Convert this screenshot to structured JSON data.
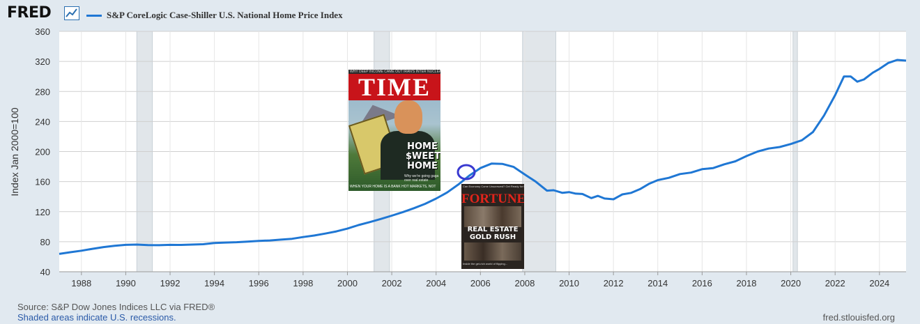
{
  "header": {
    "logo_text": "FRED",
    "logo_icon": "line-chart-icon",
    "legend_label": "S&P CoreLogic Case-Shiller U.S. National Home Price Index"
  },
  "chart_data": {
    "type": "line",
    "title": "S&P CoreLogic Case-Shiller U.S. National Home Price Index",
    "ylabel": "Index Jan 2000=100",
    "xlabel": "",
    "xlim": [
      1987.0,
      2025.2
    ],
    "ylim": [
      40,
      360
    ],
    "y_ticks": [
      40,
      80,
      120,
      160,
      200,
      240,
      280,
      320,
      360
    ],
    "x_ticks": [
      1988,
      1990,
      1992,
      1994,
      1996,
      1998,
      2000,
      2002,
      2004,
      2006,
      2008,
      2010,
      2012,
      2014,
      2016,
      2018,
      2020,
      2022,
      2024
    ],
    "grid": true,
    "legend_placement": "top-left",
    "line_color": "#1f77d4",
    "recession_color": "#e1e6ea",
    "recessions": [
      [
        1990.5,
        1991.2
      ],
      [
        2001.2,
        2001.9
      ],
      [
        2007.9,
        2009.4
      ],
      [
        2020.1,
        2020.3
      ]
    ],
    "series": [
      {
        "name": "S&P CoreLogic Case-Shiller U.S. National Home Price Index",
        "x": [
          1987.0,
          1987.5,
          1988.0,
          1988.5,
          1989.0,
          1989.5,
          1990.0,
          1990.5,
          1991.0,
          1991.5,
          1992.0,
          1992.5,
          1993.0,
          1993.5,
          1994.0,
          1994.5,
          1995.0,
          1995.5,
          1996.0,
          1996.5,
          1997.0,
          1997.5,
          1998.0,
          1998.5,
          1999.0,
          1999.5,
          2000.0,
          2000.5,
          2001.0,
          2001.5,
          2002.0,
          2002.5,
          2003.0,
          2003.5,
          2004.0,
          2004.5,
          2005.0,
          2005.5,
          2006.0,
          2006.5,
          2007.0,
          2007.5,
          2008.0,
          2008.5,
          2009.0,
          2009.3,
          2009.7,
          2010.0,
          2010.3,
          2010.6,
          2011.0,
          2011.3,
          2011.6,
          2012.0,
          2012.4,
          2012.8,
          2013.2,
          2013.6,
          2014.0,
          2014.5,
          2015.0,
          2015.5,
          2016.0,
          2016.5,
          2017.0,
          2017.5,
          2018.0,
          2018.5,
          2019.0,
          2019.5,
          2020.0,
          2020.5,
          2021.0,
          2021.5,
          2022.0,
          2022.4,
          2022.7,
          2023.0,
          2023.3,
          2023.7,
          2024.0,
          2024.4,
          2024.8,
          2025.2
        ],
        "values": [
          63.7,
          66,
          68,
          70.5,
          72.8,
          74.5,
          75.8,
          76.2,
          75.5,
          75.3,
          75.8,
          75.7,
          76.2,
          76.6,
          78.2,
          78.9,
          79.3,
          80.2,
          81.1,
          81.6,
          82.8,
          83.9,
          86.2,
          88.2,
          90.8,
          93.7,
          97.4,
          102.1,
          106,
          110.2,
          114.7,
          119.4,
          124.6,
          130.3,
          137.4,
          145.6,
          156,
          168,
          178,
          184,
          183.5,
          179.5,
          169.5,
          159.8,
          148,
          148.5,
          145,
          146,
          144,
          143.5,
          138,
          141,
          137.5,
          136.5,
          143,
          145,
          150,
          157,
          162,
          165,
          170,
          172,
          176.5,
          178,
          183,
          187,
          194,
          200,
          204,
          206,
          210,
          215,
          226,
          248,
          275,
          300,
          300,
          293,
          296,
          305,
          310,
          318,
          322,
          321
        ]
      }
    ]
  },
  "annotations": {
    "highlight": "circle around 2005 peak",
    "time_cover": {
      "top_line": "WHY DEEP INCOME CAME OUT   IRAN'S INTER NUCLEAR PLAN",
      "masthead": "TIME",
      "headline": "HOME $WEET HOME",
      "subline": "Why we're going gaga over real estate",
      "bottom_line": "WHEN YOUR HOME IS A BANK   HOT MARKETS, NOT"
    },
    "fortune_cover": {
      "top_line": "Can Economy Come Unscrewed?   Get Ready for the New",
      "masthead": "FORTUNE",
      "headline": "REAL ESTATE GOLD RUSH",
      "bottom_line": "Inside the get-rich world of flipping..."
    }
  },
  "footer": {
    "source": "Source: S&P Dow Jones Indices LLC via FRED®",
    "recession_note": "Shaded areas indicate U.S. recessions.",
    "site": "fred.stlouisfed.org"
  }
}
